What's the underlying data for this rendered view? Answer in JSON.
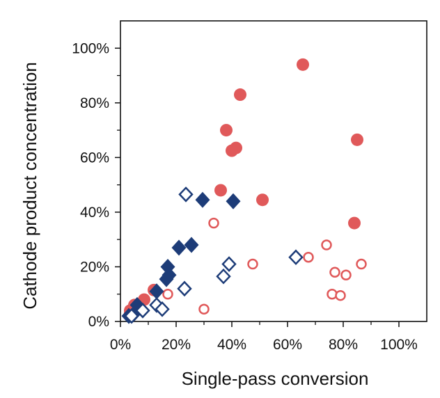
{
  "chart_data": {
    "type": "scatter",
    "title": "",
    "xlabel": "Single-pass conversion",
    "ylabel": "Cathode product concentration",
    "xlim": [
      0,
      110
    ],
    "ylim": [
      0,
      110
    ],
    "x_ticks": [
      0,
      20,
      40,
      60,
      80,
      100
    ],
    "y_ticks": [
      0,
      20,
      40,
      60,
      80,
      100
    ],
    "x_tick_labels": [
      "0%",
      "20%",
      "40%",
      "60%",
      "80%",
      "100%"
    ],
    "y_tick_labels": [
      "0%",
      "20%",
      "40%",
      "60%",
      "80%",
      "100%"
    ],
    "grid": false,
    "legend": "none",
    "colors": {
      "red": "#e0595a",
      "navy": "#1d3c78",
      "axis": "#111111"
    },
    "series": [
      {
        "marker": "circle",
        "fill": "filled",
        "color": "#e0595a",
        "points": [
          [
            65.5,
            94
          ],
          [
            43,
            83
          ],
          [
            38,
            70
          ],
          [
            41.5,
            63.5
          ],
          [
            40,
            62.5
          ],
          [
            85,
            66.5
          ],
          [
            36,
            48
          ],
          [
            51,
            44.5
          ],
          [
            84,
            36
          ],
          [
            12,
            11.5
          ],
          [
            8.5,
            8
          ],
          [
            5,
            6
          ],
          [
            3.5,
            4
          ],
          [
            3.5,
            3
          ]
        ]
      },
      {
        "marker": "circle",
        "fill": "open",
        "color": "#e0595a",
        "points": [
          [
            33.5,
            36
          ],
          [
            74,
            28
          ],
          [
            67.5,
            23.5
          ],
          [
            47.5,
            21
          ],
          [
            77,
            18
          ],
          [
            81,
            17
          ],
          [
            86.5,
            21
          ],
          [
            76,
            10
          ],
          [
            79,
            9.5
          ],
          [
            30,
            4.5
          ],
          [
            17,
            10
          ]
        ]
      },
      {
        "marker": "diamond",
        "fill": "filled",
        "color": "#1d3c78",
        "points": [
          [
            29.5,
            44.5
          ],
          [
            40.5,
            44
          ],
          [
            21,
            27
          ],
          [
            25.5,
            28
          ],
          [
            17,
            20
          ],
          [
            17.5,
            17
          ],
          [
            16.5,
            15.5
          ],
          [
            13,
            11
          ],
          [
            6,
            6
          ],
          [
            5,
            3
          ],
          [
            3,
            2
          ]
        ]
      },
      {
        "marker": "diamond",
        "fill": "open",
        "color": "#1d3c78",
        "points": [
          [
            23.5,
            46.5
          ],
          [
            39,
            21
          ],
          [
            37,
            16.5
          ],
          [
            63,
            23.5
          ],
          [
            23,
            12
          ],
          [
            13,
            6
          ],
          [
            15,
            4.5
          ],
          [
            8,
            4
          ],
          [
            4,
            2
          ]
        ]
      }
    ]
  }
}
